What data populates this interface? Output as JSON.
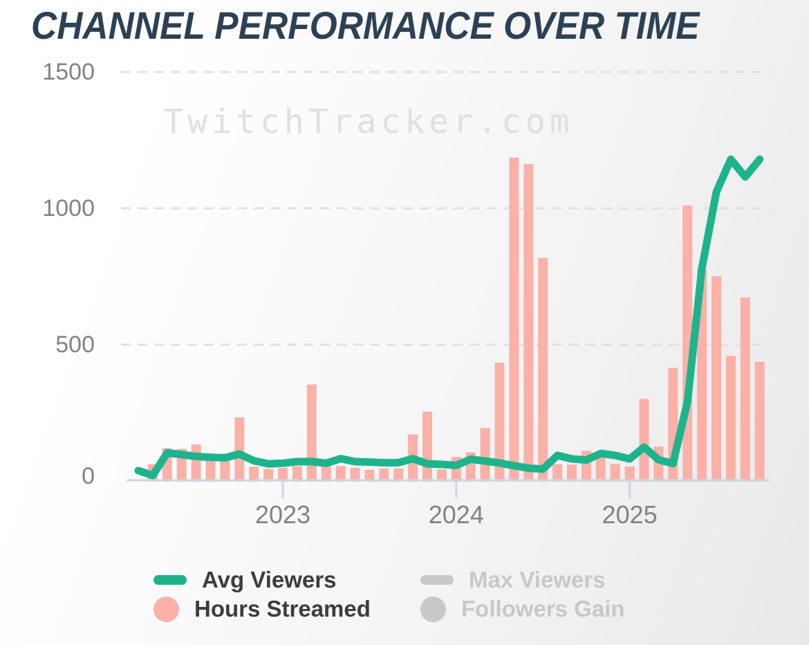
{
  "title": "CHANNEL PERFORMANCE OVER TIME",
  "watermark": "TwitchTracker.com",
  "colors": {
    "avg_viewers_line": "#1db48c",
    "hours_streamed_bar": "#fbb0a8",
    "disabled_gray": "#c9c9c9",
    "title_text": "#2d4154",
    "axis_line": "#ccd6e8",
    "gridline": "#e1e1e1",
    "axis_label": "#828282",
    "watermark_text": "#e0e0e0",
    "legend_label": "#3d3d3d",
    "legend_label_disabled": "#c8c8c8"
  },
  "legend": [
    {
      "label": "Avg Viewers",
      "marker": "line",
      "active": true
    },
    {
      "label": "Hours Streamed",
      "marker": "circle",
      "active": true
    },
    {
      "label": "Max Viewers",
      "marker": "line",
      "active": false
    },
    {
      "label": "Followers Gain",
      "marker": "circle",
      "active": false
    }
  ],
  "chart_data": {
    "type": "bar+line",
    "title": "CHANNEL PERFORMANCE OVER TIME",
    "x": [
      "2022-03",
      "2022-04",
      "2022-05",
      "2022-06",
      "2022-07",
      "2022-08",
      "2022-09",
      "2022-10",
      "2022-11",
      "2022-12",
      "2023-01",
      "2023-02",
      "2023-03",
      "2023-04",
      "2023-05",
      "2023-06",
      "2023-07",
      "2023-08",
      "2023-09",
      "2023-10",
      "2023-11",
      "2023-12",
      "2024-01",
      "2024-02",
      "2024-03",
      "2024-04",
      "2024-05",
      "2024-06",
      "2024-07",
      "2024-08",
      "2024-09",
      "2024-10",
      "2024-11",
      "2024-12",
      "2025-01",
      "2025-02",
      "2025-03",
      "2025-04",
      "2025-05",
      "2025-06",
      "2025-07",
      "2025-08",
      "2025-09",
      "2025-10"
    ],
    "series": [
      {
        "name": "Avg Viewers",
        "type": "line",
        "color": "#1db48c",
        "values": [
          38,
          20,
          103,
          97,
          90,
          87,
          85,
          99,
          74,
          63,
          65,
          71,
          71,
          65,
          82,
          71,
          69,
          67,
          67,
          82,
          63,
          61,
          57,
          80,
          73,
          66,
          56,
          47,
          44,
          94,
          81,
          77,
          101,
          94,
          81,
          124,
          78,
          64,
          290,
          780,
          1060,
          1180,
          1115,
          1180
        ]
      },
      {
        "name": "Hours Streamed",
        "type": "bar",
        "color": "#fbb0a8",
        "values": [
          null,
          61,
          120,
          118,
          134,
          95,
          88,
          233,
          52,
          44,
          48,
          54,
          354,
          60,
          55,
          48,
          41,
          46,
          46,
          171,
          254,
          42,
          88,
          105,
          194,
          434,
          1186,
          1162,
          818,
          62,
          60,
          111,
          109,
          62,
          53,
          301,
          126,
          415,
          1010,
          775,
          751,
          459,
          673,
          437
        ]
      },
      {
        "name": "Max Viewers",
        "type": "line",
        "color": "#c9c9c9",
        "values": [],
        "hidden": true
      },
      {
        "name": "Followers Gain",
        "type": "bar",
        "color": "#c9c9c9",
        "values": [],
        "hidden": true
      }
    ],
    "x_ticks": [
      {
        "label": "2023",
        "month": "2023-01"
      },
      {
        "label": "2024",
        "month": "2024-01"
      },
      {
        "label": "2025",
        "month": "2025-01"
      }
    ],
    "y_ticks": [
      0,
      500,
      1000,
      1500
    ],
    "ylim": [
      0,
      1500
    ],
    "grid": "dashed horizontal",
    "legend_position": "bottom"
  }
}
